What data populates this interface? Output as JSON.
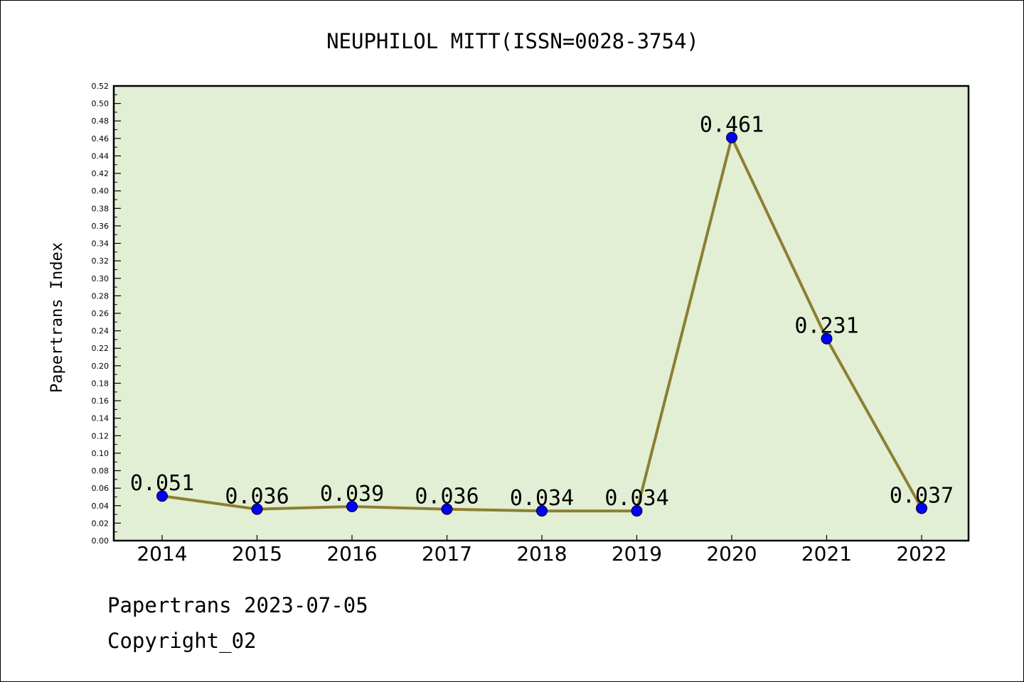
{
  "chart_data": {
    "type": "line",
    "title": "NEUPHILOL MITT(ISSN=0028-3754)",
    "xlabel": "",
    "ylabel": "Papertrans Index",
    "categories": [
      "2014",
      "2015",
      "2016",
      "2017",
      "2018",
      "2019",
      "2020",
      "2021",
      "2022"
    ],
    "series": [
      {
        "values": [
          0.051,
          0.036,
          0.039,
          0.036,
          0.034,
          0.034,
          0.461,
          0.231,
          0.037
        ],
        "labels": [
          "0.051",
          "0.036",
          "0.039",
          "0.036",
          "0.034",
          "0.034",
          "0.461",
          "0.231",
          "0.037"
        ]
      }
    ],
    "ylim": [
      0,
      0.52
    ],
    "ytick_labels": [
      "0.00",
      "0.02",
      "0.04",
      "0.06",
      "0.08",
      "0.10",
      "0.12",
      "0.14",
      "0.16",
      "0.18",
      "0.20",
      "0.22",
      "0.24",
      "0.26",
      "0.28",
      "0.30",
      "0.32",
      "0.34",
      "0.36",
      "0.38",
      "0.40",
      "0.42",
      "0.44",
      "0.46",
      "0.48",
      "0.50",
      "0.52"
    ],
    "grid": false,
    "colors": {
      "plot_bg": "#e2efd5",
      "line": "#8c7f33",
      "marker": "#0000ff"
    }
  },
  "footer": {
    "date_line": "Papertrans 2023-07-05",
    "copyright": "Copyright_02"
  }
}
